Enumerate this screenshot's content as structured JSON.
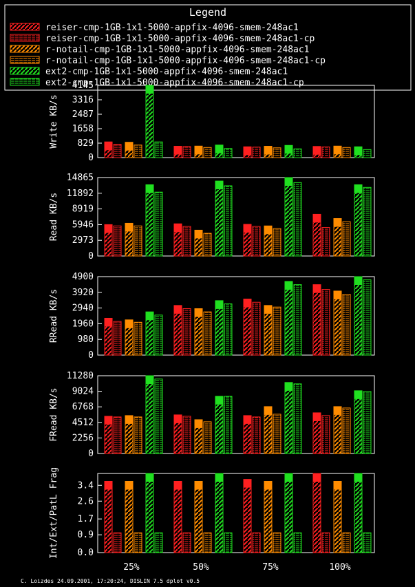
{
  "legend": {
    "title": "Legend",
    "items": [
      {
        "label": "reiser-cmp-1GB-1x1-5000-appfix-4096-smem-248ac1",
        "color": "#ff2020",
        "hatch": "solid"
      },
      {
        "label": "reiser-cmp-1GB-1x1-5000-appfix-4096-smem-248ac1-cp",
        "color": "#ff2020",
        "hatch": "dashed"
      },
      {
        "label": "r-notail-cmp-1GB-1x1-5000-appfix-4096-smem-248ac1",
        "color": "#ff8c00",
        "hatch": "solid"
      },
      {
        "label": "r-notail-cmp-1GB-1x1-5000-appfix-4096-smem-248ac1-cp",
        "color": "#ff8c00",
        "hatch": "dashed"
      },
      {
        "label": "ext2-cmp-1GB-1x1-5000-appfix-4096-smem-248ac1",
        "color": "#20e020",
        "hatch": "solid"
      },
      {
        "label": "ext2-cmp-1GB-1x1-5000-appfix-4096-smem-248ac1-cp",
        "color": "#20e020",
        "hatch": "dashed"
      }
    ]
  },
  "footer": "C. Loizdes 24.09.2001, 17:20:24, DISLIN 7.5 dplot v0.5",
  "chart_data": [
    {
      "type": "bar",
      "ylabel": "Write KB/s",
      "ylim": [
        0,
        4145
      ],
      "yticks": [
        0,
        829,
        1658,
        2487,
        3316,
        4145
      ],
      "categories": [
        "25%",
        "50%",
        "75%",
        "100%"
      ],
      "series": [
        {
          "values": [
            900,
            650,
            620,
            640
          ]
        },
        {
          "values": [
            760,
            630,
            600,
            610
          ]
        },
        {
          "values": [
            880,
            660,
            650,
            660
          ]
        },
        {
          "values": [
            720,
            580,
            560,
            580
          ]
        },
        {
          "values": [
            4145,
            720,
            700,
            620
          ]
        },
        {
          "values": [
            900,
            520,
            500,
            460
          ]
        }
      ]
    },
    {
      "type": "bar",
      "ylabel": "Read KB/s",
      "ylim": [
        0,
        14865
      ],
      "yticks": [
        0,
        2973,
        5946,
        8919,
        11892,
        14865
      ],
      "categories": [
        "25%",
        "50%",
        "75%",
        "100%"
      ],
      "series": [
        {
          "values": [
            5946,
            6100,
            6000,
            7900
          ]
        },
        {
          "values": [
            5700,
            5600,
            5600,
            5400
          ]
        },
        {
          "values": [
            6200,
            4900,
            5700,
            7100
          ]
        },
        {
          "values": [
            5700,
            4300,
            5200,
            6500
          ]
        },
        {
          "values": [
            13500,
            14200,
            15000,
            13500
          ]
        },
        {
          "values": [
            12100,
            13300,
            13900,
            13000
          ]
        }
      ]
    },
    {
      "type": "bar",
      "ylabel": "RRead KB/s",
      "ylim": [
        0,
        4900
      ],
      "yticks": [
        0,
        980,
        1960,
        2940,
        3920,
        4900
      ],
      "categories": [
        "25%",
        "50%",
        "75%",
        "100%"
      ],
      "series": [
        {
          "values": [
            2300,
            3100,
            3500,
            4400
          ]
        },
        {
          "values": [
            2100,
            2900,
            3300,
            4100
          ]
        },
        {
          "values": [
            2200,
            2900,
            3100,
            4000
          ]
        },
        {
          "values": [
            2050,
            2700,
            3000,
            3800
          ]
        },
        {
          "values": [
            2700,
            3400,
            4600,
            4900
          ]
        },
        {
          "values": [
            2500,
            3200,
            4400,
            4700
          ]
        }
      ]
    },
    {
      "type": "bar",
      "ylabel": "FRead KB/s",
      "ylim": [
        0,
        11280
      ],
      "yticks": [
        0,
        2256,
        4512,
        6768,
        9024,
        11280
      ],
      "categories": [
        "25%",
        "50%",
        "75%",
        "100%"
      ],
      "series": [
        {
          "values": [
            5400,
            5600,
            5500,
            5900
          ]
        },
        {
          "values": [
            5300,
            5400,
            5300,
            5500
          ]
        },
        {
          "values": [
            5500,
            4900,
            6800,
            6800
          ]
        },
        {
          "values": [
            5300,
            4600,
            5700,
            6600
          ]
        },
        {
          "values": [
            11280,
            8300,
            10300,
            9100
          ]
        },
        {
          "values": [
            10800,
            8300,
            10100,
            9000
          ]
        }
      ]
    },
    {
      "type": "bar",
      "ylabel": "Int/Ext/PatL Frag",
      "ylim": [
        0,
        4.0
      ],
      "yticks": [
        0.0,
        0.9,
        1.7,
        2.6,
        3.4
      ],
      "categories": [
        "25%",
        "50%",
        "75%",
        "100%"
      ],
      "series": [
        {
          "values": [
            3.6,
            3.6,
            3.7,
            4.0
          ]
        },
        {
          "values": [
            1.0,
            1.0,
            1.0,
            1.0
          ]
        },
        {
          "values": [
            3.6,
            3.6,
            3.6,
            3.6
          ]
        },
        {
          "values": [
            1.0,
            1.0,
            1.0,
            1.0
          ]
        },
        {
          "values": [
            4.0,
            4.0,
            4.0,
            4.0
          ]
        },
        {
          "values": [
            1.0,
            1.0,
            1.0,
            1.0
          ]
        }
      ]
    }
  ]
}
